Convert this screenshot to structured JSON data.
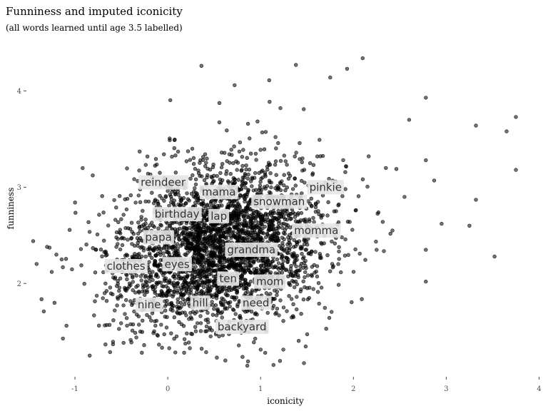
{
  "chart_data": {
    "type": "scatter",
    "title": "Funniness and imputed iconicity",
    "subtitle": "(all words learned until age 3.5 labelled)",
    "xlabel": "iconicity",
    "ylabel": "funniness",
    "xlim": [
      -1.5,
      4.05
    ],
    "ylim": [
      1.12,
      4.5
    ],
    "xticks": [
      -1,
      0,
      1,
      2,
      3,
      4
    ],
    "yticks": [
      2,
      3,
      4
    ],
    "xtick_labels": [
      "-1",
      "0",
      "1",
      "2",
      "3",
      "4"
    ],
    "ytick_labels": [
      "2",
      "3",
      "4"
    ],
    "grid": false,
    "cloud": {
      "n": 3200,
      "x_mean": 0.55,
      "x_sd": 0.55,
      "y_mean": 2.38,
      "y_sd": 0.42,
      "correlation": 0.22
    },
    "sparse_points": [
      [
        3.75,
        3.73
      ],
      [
        3.65,
        3.58
      ],
      [
        3.75,
        3.18
      ],
      [
        3.52,
        2.28
      ],
      [
        3.32,
        2.87
      ],
      [
        3.32,
        3.64
      ],
      [
        3.25,
        2.6
      ],
      [
        2.78,
        3.93
      ],
      [
        2.78,
        3.28
      ],
      [
        2.78,
        2.35
      ],
      [
        2.78,
        2.02
      ],
      [
        2.87,
        3.07
      ],
      [
        2.95,
        2.62
      ],
      [
        2.6,
        3.7
      ],
      [
        2.1,
        4.34
      ],
      [
        1.75,
        4.14
      ],
      [
        1.38,
        4.27
      ],
      [
        0.72,
        4.06
      ],
      [
        -1.45,
        2.44
      ],
      [
        -1.3,
        2.38
      ],
      [
        -1.25,
        2.12
      ],
      [
        -1.2,
        2.3
      ],
      [
        -1.22,
        1.8
      ],
      [
        0.62,
        1.2
      ],
      [
        1.05,
        1.28
      ],
      [
        2.42,
        2.55
      ],
      [
        2.55,
        2.9
      ],
      [
        2.35,
        3.2
      ],
      [
        2.25,
        2.35
      ]
    ],
    "labelled_points": [
      {
        "word": "pinkie",
        "x": 1.7,
        "y": 3.0
      },
      {
        "word": "reindeer",
        "x": -0.05,
        "y": 3.05
      },
      {
        "word": "mama",
        "x": 0.55,
        "y": 2.95
      },
      {
        "word": "snowman",
        "x": 1.2,
        "y": 2.85
      },
      {
        "word": "birthday",
        "x": 0.1,
        "y": 2.72
      },
      {
        "word": "lap",
        "x": 0.55,
        "y": 2.7
      },
      {
        "word": "momma",
        "x": 1.6,
        "y": 2.55
      },
      {
        "word": "papa",
        "x": -0.1,
        "y": 2.48
      },
      {
        "word": "grandma",
        "x": 0.9,
        "y": 2.35
      },
      {
        "word": "clothes",
        "x": -0.45,
        "y": 2.18
      },
      {
        "word": "eyes",
        "x": 0.1,
        "y": 2.2
      },
      {
        "word": "ten",
        "x": 0.65,
        "y": 2.05
      },
      {
        "word": "mom",
        "x": 1.1,
        "y": 2.02
      },
      {
        "word": "nine",
        "x": -0.2,
        "y": 1.78
      },
      {
        "word": "hill",
        "x": 0.35,
        "y": 1.8
      },
      {
        "word": "need",
        "x": 0.95,
        "y": 1.8
      },
      {
        "word": "backyard",
        "x": 0.8,
        "y": 1.55
      }
    ]
  }
}
